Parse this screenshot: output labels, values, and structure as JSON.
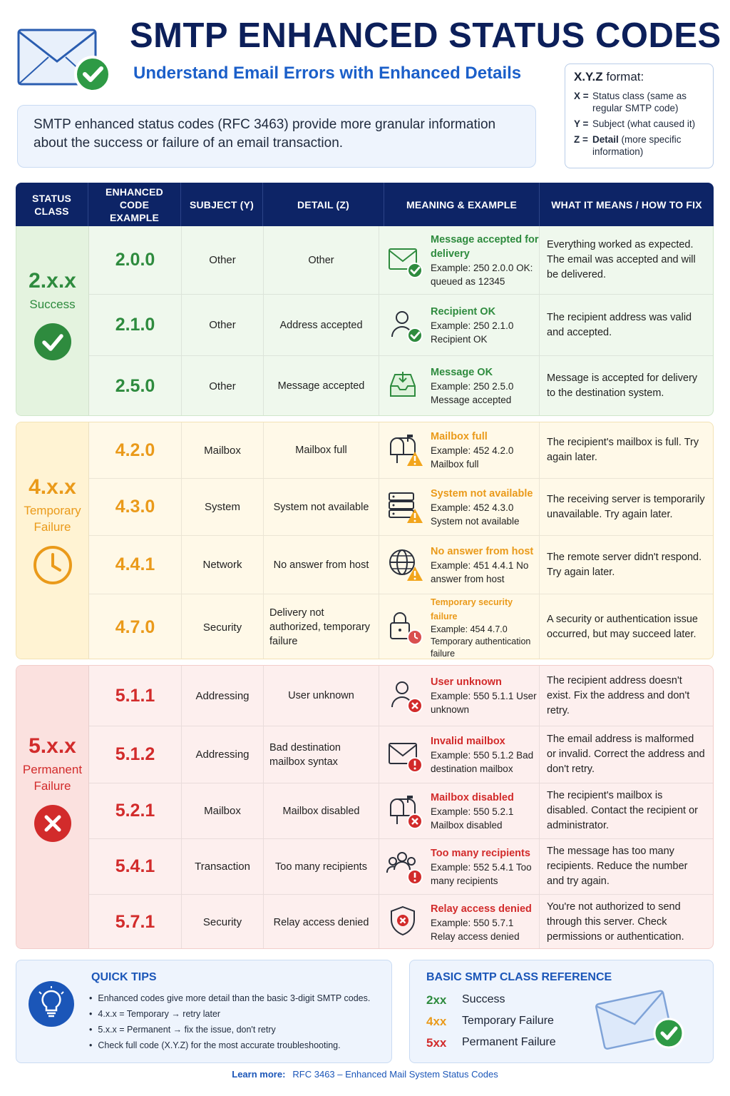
{
  "header": {
    "title": "SMTP ENHANCED STATUS CODES",
    "subtitle": "Understand Email Errors with Enhanced Details",
    "intro": "SMTP enhanced status codes (RFC 3463) provide more granular information about the success or failure of an email transaction.",
    "format_title_bold": "X.Y.Z",
    "format_title_rest": " format:",
    "format_rows": [
      {
        "key": "X =",
        "text": "Status class (same as regular SMTP code)"
      },
      {
        "key": "Y =",
        "text": "Subject (what caused it)"
      },
      {
        "key": "Z =",
        "bold": "Detail",
        "text": " (more specific information)"
      }
    ]
  },
  "columns": [
    "STATUS CLASS",
    "ENHANCED CODE EXAMPLE",
    "SUBJECT (Y)",
    "DETAIL (Z)",
    "MEANING & EXAMPLE",
    "WHAT IT MEANS / HOW TO FIX"
  ],
  "groups": [
    {
      "code": "2.x.x",
      "name": "Success",
      "color": "#2e8b3e",
      "icon": "check-circle-icon",
      "rows": [
        {
          "code": "2.0.0",
          "subject": "Other",
          "detail": "Other",
          "title": "Message accepted for delivery",
          "example": "Example: 250 2.0.0 OK: queued as 12345",
          "fix": "Everything worked as expected. The email was accepted and will be delivered.",
          "icon": "envelope-check-icon"
        },
        {
          "code": "2.1.0",
          "subject": "Other",
          "detail": "Address accepted",
          "title": "Recipient OK",
          "example": "Example: 250 2.1.0 Recipient OK",
          "fix": "The recipient address was valid and accepted.",
          "icon": "user-check-icon"
        },
        {
          "code": "2.5.0",
          "subject": "Other",
          "detail": "Message accepted",
          "title": "Message OK",
          "example": "Example: 250 2.5.0 Message accepted",
          "fix": "Message is accepted for delivery to the destination system.",
          "icon": "inbox-icon"
        }
      ]
    },
    {
      "code": "4.x.x",
      "name": "Temporary Failure",
      "color": "#ea9a1a",
      "icon": "clock-icon",
      "rows": [
        {
          "code": "4.2.0",
          "subject": "Mailbox",
          "detail": "Mailbox full",
          "title": "Mailbox full",
          "example": "Example: 452 4.2.0 Mailbox full",
          "fix": "The recipient's mailbox is full. Try again later.",
          "icon": "mailbox-warning-icon"
        },
        {
          "code": "4.3.0",
          "subject": "System",
          "detail": "System not available",
          "title": "System not available",
          "example": "Example: 452 4.3.0 System not available",
          "fix": "The receiving server is temporarily unavailable. Try again later.",
          "icon": "server-warning-icon"
        },
        {
          "code": "4.4.1",
          "subject": "Network",
          "detail": "No answer from host",
          "title": "No answer from host",
          "example": "Example: 451 4.4.1 No answer from host",
          "fix": "The remote server didn't respond. Try again later.",
          "icon": "globe-warning-icon"
        },
        {
          "code": "4.7.0",
          "subject": "Security",
          "detail": "Delivery not authorized, temporary failure",
          "title": "Temporary security failure",
          "example": "Example: 454 4.7.0 Temporary authentication failure",
          "fix": "A security or authentication issue occurred, but may succeed later.",
          "icon": "lock-clock-icon"
        }
      ]
    },
    {
      "code": "5.x.x",
      "name": "Permanent Failure",
      "color": "#d22b2b",
      "icon": "x-circle-icon",
      "rows": [
        {
          "code": "5.1.1",
          "subject": "Addressing",
          "detail": "User unknown",
          "title": "User unknown",
          "example": "Example: 550 5.1.1 User unknown",
          "fix": "The recipient address doesn't exist. Fix the address and don't retry.",
          "icon": "user-x-icon"
        },
        {
          "code": "5.1.2",
          "subject": "Addressing",
          "detail": "Bad destination mailbox syntax",
          "title": "Invalid mailbox",
          "example": "Example: 550 5.1.2 Bad destination mailbox",
          "fix": "The email address is malformed or invalid. Correct the address and don't retry.",
          "icon": "envelope-error-icon"
        },
        {
          "code": "5.2.1",
          "subject": "Mailbox",
          "detail": "Mailbox disabled",
          "title": "Mailbox disabled",
          "example": "Example: 550 5.2.1 Mailbox disabled",
          "fix": "The recipient's mailbox is disabled. Contact the recipient or administrator.",
          "icon": "mailbox-x-icon"
        },
        {
          "code": "5.4.1",
          "subject": "Transaction",
          "detail": "Too many recipients",
          "title": "Too many recipients",
          "example": "Example: 552 5.4.1 Too many recipients",
          "fix": "The message has too many recipients. Reduce the number and try again.",
          "icon": "users-error-icon"
        },
        {
          "code": "5.7.1",
          "subject": "Security",
          "detail": "Relay access denied",
          "title": "Relay access denied",
          "example": "Example: 550 5.7.1 Relay access denied",
          "fix": "You're not authorized to send through this server. Check permissions or authentication.",
          "icon": "shield-x-icon"
        }
      ]
    }
  ],
  "tips": {
    "title": "QUICK TIPS",
    "items": [
      "Enhanced codes give more detail than the basic 3-digit SMTP codes.",
      "4.x.x = Temporary → retry later",
      "5.x.x = Permanent → fix the issue, don't retry",
      "Check full code (X.Y.Z) for the most accurate troubleshooting."
    ]
  },
  "reference": {
    "title": "BASIC SMTP CLASS REFERENCE",
    "rows": [
      {
        "code": "2xx",
        "label": "Success",
        "color": "#2e8b3e"
      },
      {
        "code": "4xx",
        "label": "Temporary Failure",
        "color": "#ea9a1a"
      },
      {
        "code": "5xx",
        "label": "Permanent Failure",
        "color": "#d22b2b"
      }
    ]
  },
  "footer": {
    "label": "Learn more:",
    "value": "RFC 3463 – Enhanced Mail System Status Codes"
  },
  "colors": {
    "navy": "#0d2466",
    "blue": "#1b56b8",
    "success": "#2e8b3e",
    "temporary": "#ea9a1a",
    "permanent": "#d22b2b"
  }
}
